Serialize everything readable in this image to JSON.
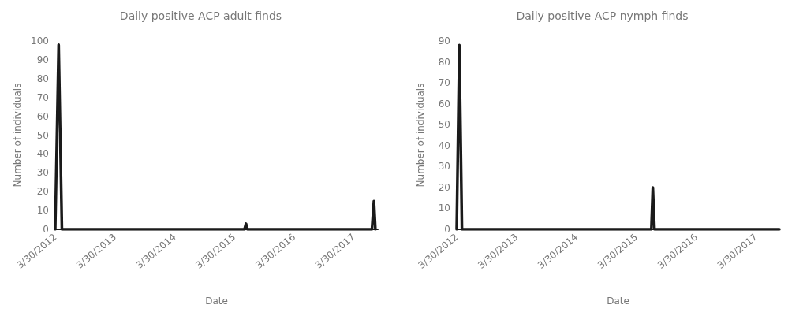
{
  "chart_data": [
    {
      "type": "line",
      "title": "Daily positive ACP adult finds",
      "xlabel": "Date",
      "ylabel": "Number of individuals",
      "x": [
        "2012-03-30",
        "2012-04-20",
        "2012-05-10",
        "2015-06-01",
        "2015-06-10",
        "2015-06-20",
        "2017-07-20",
        "2017-08-01",
        "2017-08-10"
      ],
      "values": [
        0,
        98,
        0,
        0,
        3,
        0,
        0,
        15,
        0
      ],
      "color": "#1a1a1a",
      "marker": "none",
      "line_style": "solid",
      "xlim": [
        "2012-03-30",
        "2017-08-25"
      ],
      "xticks": [
        {
          "value": "2012-03-30",
          "label": "3/30/2012"
        },
        {
          "value": "2013-03-30",
          "label": "3/30/2013"
        },
        {
          "value": "2014-03-30",
          "label": "3/30/2014"
        },
        {
          "value": "2015-03-30",
          "label": "3/30/2015"
        },
        {
          "value": "2016-03-30",
          "label": "3/30/2016"
        },
        {
          "value": "2017-03-30",
          "label": "3/30/2017"
        }
      ],
      "ylim": [
        0,
        100
      ],
      "yticks": [
        0,
        10,
        20,
        30,
        40,
        50,
        60,
        70,
        80,
        90,
        100
      ]
    },
    {
      "type": "line",
      "title": "Daily positive ACP nymph finds",
      "xlabel": "Date",
      "ylabel": "Number of individuals",
      "x": [
        "2012-03-30",
        "2012-04-15",
        "2012-05-01",
        "2015-07-01",
        "2015-07-10",
        "2015-07-20",
        "2017-08-20"
      ],
      "values": [
        0,
        88,
        0,
        0,
        20,
        0,
        0
      ],
      "color": "#1a1a1a",
      "marker": "none",
      "line_style": "solid",
      "xlim": [
        "2012-03-30",
        "2017-08-20"
      ],
      "xticks": [
        {
          "value": "2012-03-30",
          "label": "3/30/2012"
        },
        {
          "value": "2013-03-30",
          "label": "3/30/2013"
        },
        {
          "value": "2014-03-30",
          "label": "3/30/2014"
        },
        {
          "value": "2015-03-30",
          "label": "3/30/2015"
        },
        {
          "value": "2016-03-30",
          "label": "3/30/2016"
        },
        {
          "value": "2017-03-30",
          "label": "3/30/2017"
        }
      ],
      "ylim": [
        0,
        90
      ],
      "yticks": [
        0,
        10,
        20,
        30,
        40,
        50,
        60,
        70,
        80,
        90
      ]
    }
  ]
}
